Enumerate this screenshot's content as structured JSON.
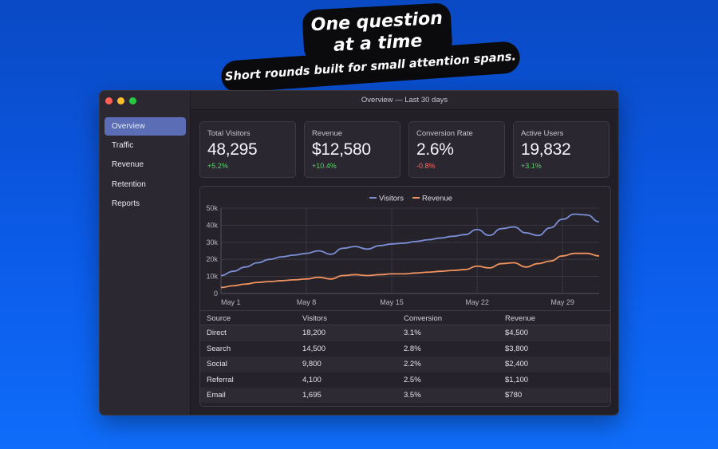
{
  "headline": {
    "line1": "One question",
    "line2": "at a time",
    "subtitle": "Short rounds built for small attention spans."
  },
  "window": {
    "title": "Overview — Last 30 days",
    "controls": [
      "close",
      "minimize",
      "zoom"
    ]
  },
  "sidebar": {
    "items": [
      {
        "label": "Overview",
        "active": true
      },
      {
        "label": "Traffic",
        "active": false
      },
      {
        "label": "Revenue",
        "active": false
      },
      {
        "label": "Retention",
        "active": false
      },
      {
        "label": "Reports",
        "active": false
      }
    ]
  },
  "cards": [
    {
      "label": "Total Visitors",
      "value": "48,295",
      "delta": "+5.2%",
      "trend": "up"
    },
    {
      "label": "Revenue",
      "value": "$12,580",
      "delta": "+10.4%",
      "trend": "up"
    },
    {
      "label": "Conversion Rate",
      "value": "2.6%",
      "delta": "-0.8%",
      "trend": "down"
    },
    {
      "label": "Active Users",
      "value": "19,832",
      "delta": "+3.1%",
      "trend": "up"
    }
  ],
  "colors": {
    "visitors": "#7b8fd6",
    "revenue": "#f0935e",
    "positive": "#5bd06a",
    "negative": "#ff6b62",
    "accent": "#5a6db5"
  },
  "chart_data": {
    "type": "line",
    "legend_position": "top-center",
    "grid": true,
    "x_ticks": [
      "May 1",
      "May 8",
      "May 15",
      "May 22",
      "May 29"
    ],
    "y_ticks": [
      "0",
      "10k",
      "20k",
      "30k",
      "40k",
      "50k"
    ],
    "ylim": [
      0,
      50000
    ],
    "x": [
      1,
      2,
      3,
      4,
      5,
      6,
      7,
      8,
      9,
      10,
      11,
      12,
      13,
      14,
      15,
      16,
      17,
      18,
      19,
      20,
      21,
      22,
      23,
      24,
      25,
      26,
      27,
      28,
      29,
      30,
      31,
      32
    ],
    "series": [
      {
        "name": "Visitors",
        "values": [
          10500,
          13000,
          15500,
          18000,
          20000,
          21500,
          22500,
          23500,
          25000,
          23000,
          26500,
          27500,
          26000,
          28000,
          29000,
          29500,
          30500,
          31500,
          32500,
          33500,
          34500,
          37500,
          34000,
          38000,
          39000,
          35500,
          34000,
          38500,
          43500,
          46500,
          46000,
          42000
        ]
      },
      {
        "name": "Revenue",
        "values": [
          3500,
          4500,
          5500,
          6500,
          7000,
          7500,
          8000,
          8500,
          9500,
          8500,
          10500,
          11000,
          10500,
          11000,
          11500,
          11500,
          12000,
          12500,
          13000,
          13500,
          14000,
          16000,
          15000,
          17500,
          18000,
          15500,
          17500,
          19000,
          22000,
          23500,
          23500,
          22000
        ]
      }
    ]
  },
  "table": {
    "headers": [
      "Source",
      "Visitors",
      "Conversion",
      "Revenue"
    ],
    "rows": [
      [
        "Direct",
        "18,200",
        "3.1%",
        "$4,500"
      ],
      [
        "Search",
        "14,500",
        "2.8%",
        "$3,800"
      ],
      [
        "Social",
        "9,800",
        "2.2%",
        "$2,400"
      ],
      [
        "Referral",
        "4,100",
        "2.5%",
        "$1,100"
      ],
      [
        "Email",
        "1,695",
        "3.5%",
        "$780"
      ]
    ]
  }
}
